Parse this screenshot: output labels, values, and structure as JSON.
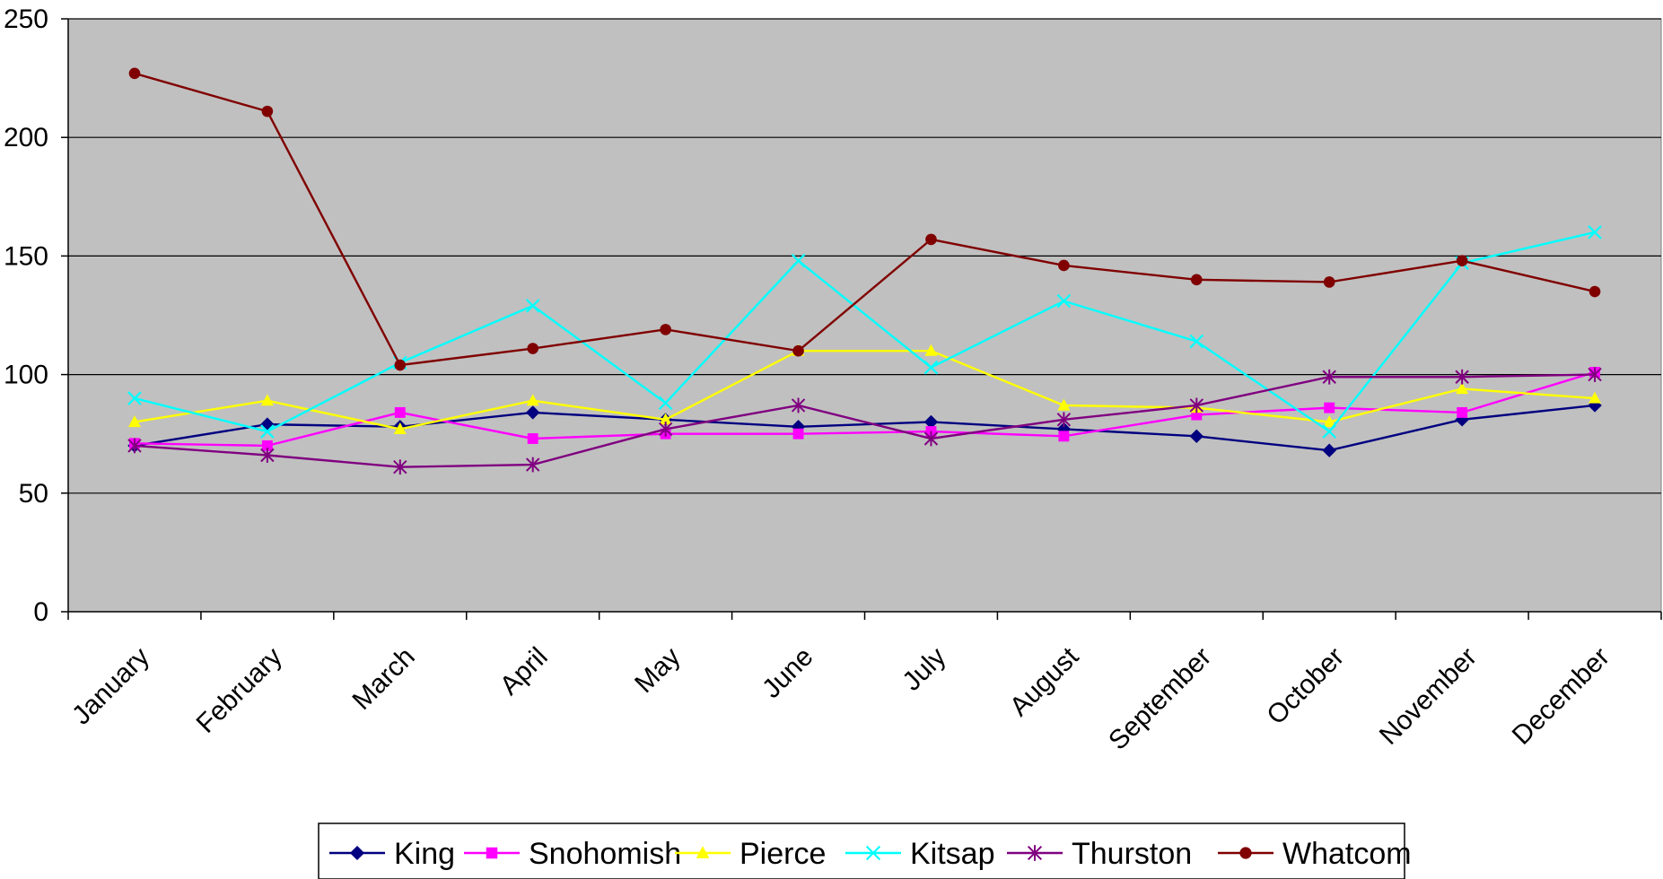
{
  "chart_data": {
    "type": "line",
    "title": "",
    "xlabel": "",
    "ylabel": "",
    "ylim": [
      0,
      250
    ],
    "yticks": [
      0,
      50,
      100,
      150,
      200,
      250
    ],
    "grid": "horizontal",
    "plot_background": "#c0c0c0",
    "legend_position": "bottom",
    "categories": [
      "January",
      "February",
      "March",
      "April",
      "May",
      "June",
      "July",
      "August",
      "September",
      "October",
      "November",
      "December"
    ],
    "series": [
      {
        "name": "King",
        "color": "#000080",
        "marker": "diamond",
        "values": [
          70,
          79,
          78,
          84,
          81,
          78,
          80,
          77,
          74,
          68,
          81,
          87
        ]
      },
      {
        "name": "Snohomish",
        "color": "#ff00ff",
        "marker": "square",
        "values": [
          71,
          70,
          84,
          73,
          75,
          75,
          76,
          74,
          83,
          86,
          84,
          101
        ]
      },
      {
        "name": "Pierce",
        "color": "#ffff00",
        "marker": "triangle",
        "values": [
          80,
          89,
          77,
          89,
          81,
          110,
          110,
          87,
          86,
          80,
          94,
          90
        ]
      },
      {
        "name": "Kitsap",
        "color": "#00ffff",
        "marker": "x",
        "values": [
          90,
          76,
          105,
          129,
          88,
          148,
          103,
          131,
          114,
          76,
          147,
          160
        ]
      },
      {
        "name": "Thurston",
        "color": "#800080",
        "marker": "star",
        "values": [
          70,
          66,
          61,
          62,
          77,
          87,
          73,
          81,
          87,
          99,
          99,
          100
        ]
      },
      {
        "name": "Whatcom",
        "color": "#800000",
        "marker": "circle",
        "values": [
          227,
          211,
          104,
          111,
          119,
          110,
          157,
          146,
          140,
          139,
          148,
          135
        ]
      }
    ]
  }
}
